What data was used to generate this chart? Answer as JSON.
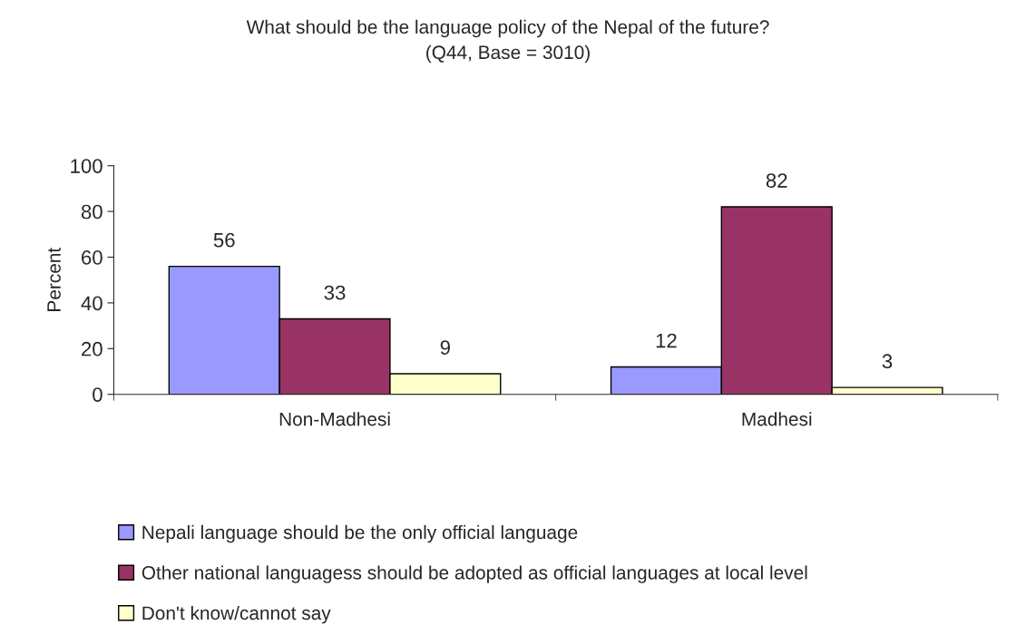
{
  "chart_data": {
    "type": "bar",
    "title": "What should be the language policy of the Nepal of the future?",
    "subtitle": "(Q44, Base = 3010)",
    "ylabel": "Percent",
    "categories": [
      "Non-Madhesi",
      "Madhesi"
    ],
    "series": [
      {
        "name": "Nepali language should be the only official language",
        "color": "#9999ff",
        "values": [
          56,
          12
        ]
      },
      {
        "name": "Other national languagess should be adopted as official languages at local level",
        "color": "#993366",
        "values": [
          33,
          82
        ]
      },
      {
        "name": "Don't know/cannot say",
        "color": "#ffffcc",
        "values": [
          9,
          3
        ]
      }
    ],
    "ylim": [
      0,
      100
    ],
    "yticks": [
      0,
      20,
      40,
      60,
      80,
      100
    ],
    "grid": false,
    "legend": "bottom",
    "data_labels": true
  }
}
